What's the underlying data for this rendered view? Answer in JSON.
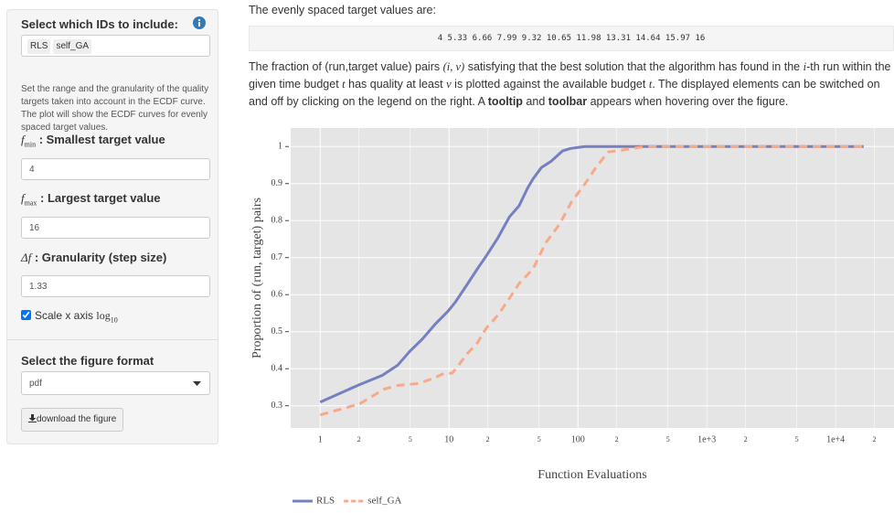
{
  "sidebar": {
    "ids_label": "Select which IDs to include:",
    "selected_ids": [
      "RLS",
      "self_GA"
    ],
    "help_text": "Set the range and the granularity of the quality targets taken into account in the ECDF curve. The plot will show the ECDF curves for evenly spaced target values.",
    "fmin": {
      "symbol": "f",
      "subscript": "min",
      "label": " : Smallest target value",
      "value": 4
    },
    "fmax": {
      "symbol": "f",
      "subscript": "max",
      "label": " : Largest target value",
      "value": 16
    },
    "step": {
      "symbol": "Δf",
      "label": " : Granularity (step size)",
      "value": 1.33
    },
    "scale_checkbox": {
      "label": "Scale x axis ",
      "log": "log",
      "subscript": "10",
      "checked": true
    },
    "format_label": "Select the figure format",
    "format_value": "pdf",
    "download_button": "download the figure"
  },
  "main": {
    "targets_label": "The evenly spaced target values are:",
    "targets": "4 5.33 6.66 7.99 9.32 10.65 11.98 13.31 14.64 15.97 16",
    "description": [
      "The fraction of (run,target value) pairs ",
      "(i, v)",
      " satisfying that the best solution that the algorithm has found in the ",
      "i",
      "-th run within the given time budget ",
      "t",
      " has quality at least ",
      "v",
      " is plotted against the available budget ",
      "t",
      ". The displayed elements can be switched on and off by clicking on the legend on the right. A ",
      "tooltip",
      " and ",
      "toolbar",
      " appears when hovering over the figure."
    ]
  },
  "chart_data": {
    "type": "line",
    "x_label": "Function Evaluations",
    "y_label": "Proportion of (run, target) pairs",
    "xlog": true,
    "grid": true,
    "legend_position": "bottom",
    "xlim": [
      0.59,
      28400
    ],
    "ylim": [
      0.24,
      1.05
    ],
    "xticks": [
      1,
      {
        "value": 2,
        "label": "2"
      },
      {
        "value": 5,
        "label": "5"
      },
      10,
      {
        "value": 20,
        "label": "2"
      },
      {
        "value": 50,
        "label": "5"
      },
      100,
      {
        "value": 200,
        "label": "2"
      },
      {
        "value": 500,
        "label": "5"
      },
      {
        "value": 1000,
        "label": "1e+3"
      },
      {
        "value": 2000,
        "label": "2"
      },
      {
        "value": 5000,
        "label": "5"
      },
      {
        "value": 10000,
        "label": "1e+4"
      },
      {
        "value": 20000,
        "label": "2"
      }
    ],
    "yticks": [
      0.3,
      0.4,
      0.5,
      0.6,
      0.7,
      0.8,
      0.9,
      1
    ],
    "series": [
      {
        "name": "RLS",
        "color": "#7480c0",
        "dash": false,
        "x": [
          1,
          2.02,
          3.03,
          4.0,
          4.96,
          6.2,
          7.8,
          9.8,
          11.2,
          13.6,
          16.6,
          19.5,
          24,
          29.4,
          35,
          40.7,
          44.9,
          52,
          62,
          75.9,
          87.8,
          114,
          16500
        ],
        "values": [
          0.31,
          0.357,
          0.382,
          0.41,
          0.447,
          0.48,
          0.52,
          0.555,
          0.58,
          0.624,
          0.67,
          0.705,
          0.754,
          0.81,
          0.84,
          0.888,
          0.913,
          0.943,
          0.96,
          0.988,
          0.995,
          1,
          1
        ]
      },
      {
        "name": "self_GA",
        "color": "#f9a98a",
        "dash": true,
        "x": [
          1,
          2.02,
          3.14,
          4,
          5.8,
          7.7,
          9.2,
          10.6,
          12.2,
          13.8,
          16.6,
          19.5,
          24,
          29.4,
          35,
          44.9,
          56.3,
          72,
          89,
          114,
          136,
          171,
          218,
          302,
          395,
          16500
        ],
        "values": [
          0.275,
          0.305,
          0.345,
          0.355,
          0.36,
          0.375,
          0.388,
          0.388,
          0.415,
          0.44,
          0.47,
          0.51,
          0.545,
          0.59,
          0.63,
          0.67,
          0.74,
          0.79,
          0.85,
          0.9,
          0.94,
          0.985,
          0.99,
          0.998,
          1,
          1
        ]
      }
    ]
  }
}
